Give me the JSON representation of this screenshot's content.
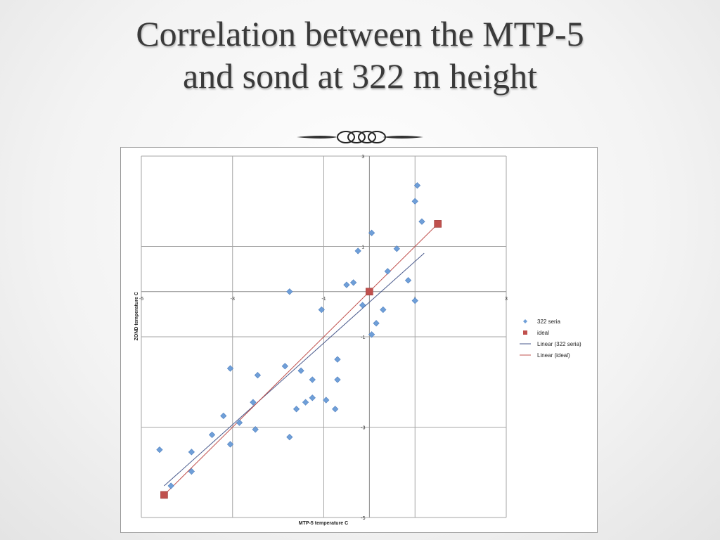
{
  "slide": {
    "title_line1": "Correlation between the MTP-5",
    "title_line2": "and sond at 322 m height"
  },
  "colors": {
    "series_322": "#6f9fd8",
    "series_ideal": "#c0504d",
    "trend_322": "#4a5a8c",
    "trend_ideal": "#c0504d"
  },
  "chart_data": {
    "type": "scatter",
    "xlabel": "MTP-5 temperature C",
    "ylabel": "ZOND temperature C",
    "xlim": [
      -5,
      3
    ],
    "ylim": [
      -5,
      3
    ],
    "x_ticks": [
      "-5",
      "-3",
      "-1",
      "1",
      "3"
    ],
    "y_ticks": [
      "3",
      "1",
      "-1",
      "-3",
      "-5"
    ],
    "grid": true,
    "legend_position": "right",
    "series": [
      {
        "name": "322 seria",
        "marker": "diamond",
        "points": [
          [
            -4.6,
            -3.5
          ],
          [
            -4.35,
            -4.3
          ],
          [
            -3.9,
            -3.55
          ],
          [
            -3.9,
            -3.98
          ],
          [
            -3.45,
            -3.17
          ],
          [
            -3.2,
            -2.75
          ],
          [
            -3.05,
            -3.38
          ],
          [
            -3.05,
            -1.7
          ],
          [
            -2.85,
            -2.9
          ],
          [
            -2.55,
            -2.45
          ],
          [
            -2.5,
            -3.05
          ],
          [
            -2.45,
            -1.85
          ],
          [
            -1.85,
            -1.65
          ],
          [
            -1.75,
            0
          ],
          [
            -1.75,
            -3.22
          ],
          [
            -1.6,
            -2.6
          ],
          [
            -1.5,
            -1.75
          ],
          [
            -1.4,
            -2.45
          ],
          [
            -1.25,
            -1.95
          ],
          [
            -1.25,
            -2.35
          ],
          [
            -1.05,
            -0.4
          ],
          [
            -0.95,
            -2.4
          ],
          [
            -0.75,
            -2.6
          ],
          [
            -0.7,
            -1.5
          ],
          [
            -0.7,
            -1.95
          ],
          [
            -0.5,
            0.15
          ],
          [
            -0.35,
            0.2
          ],
          [
            -0.25,
            0.9
          ],
          [
            -0.15,
            -0.3
          ],
          [
            0.05,
            -0.95
          ],
          [
            0.05,
            1.3
          ],
          [
            0.15,
            -0.7
          ],
          [
            0.3,
            -0.4
          ],
          [
            0.4,
            0.45
          ],
          [
            0.6,
            0.95
          ],
          [
            0.85,
            0.25
          ],
          [
            1.0,
            2.0
          ],
          [
            1.0,
            -0.2
          ],
          [
            1.05,
            2.35
          ],
          [
            1.15,
            1.55
          ]
        ]
      },
      {
        "name": "ideal",
        "marker": "square",
        "points": [
          [
            -4.5,
            -4.5
          ],
          [
            0,
            0
          ],
          [
            1.5,
            1.5
          ]
        ]
      }
    ],
    "trendlines": [
      {
        "name": "Linear (322 seria)",
        "from": [
          -4.5,
          -4.3
        ],
        "to": [
          1.2,
          0.85
        ]
      },
      {
        "name": "Linear (ideal)",
        "from": [
          -4.5,
          -4.5
        ],
        "to": [
          1.5,
          1.5
        ]
      }
    ]
  }
}
